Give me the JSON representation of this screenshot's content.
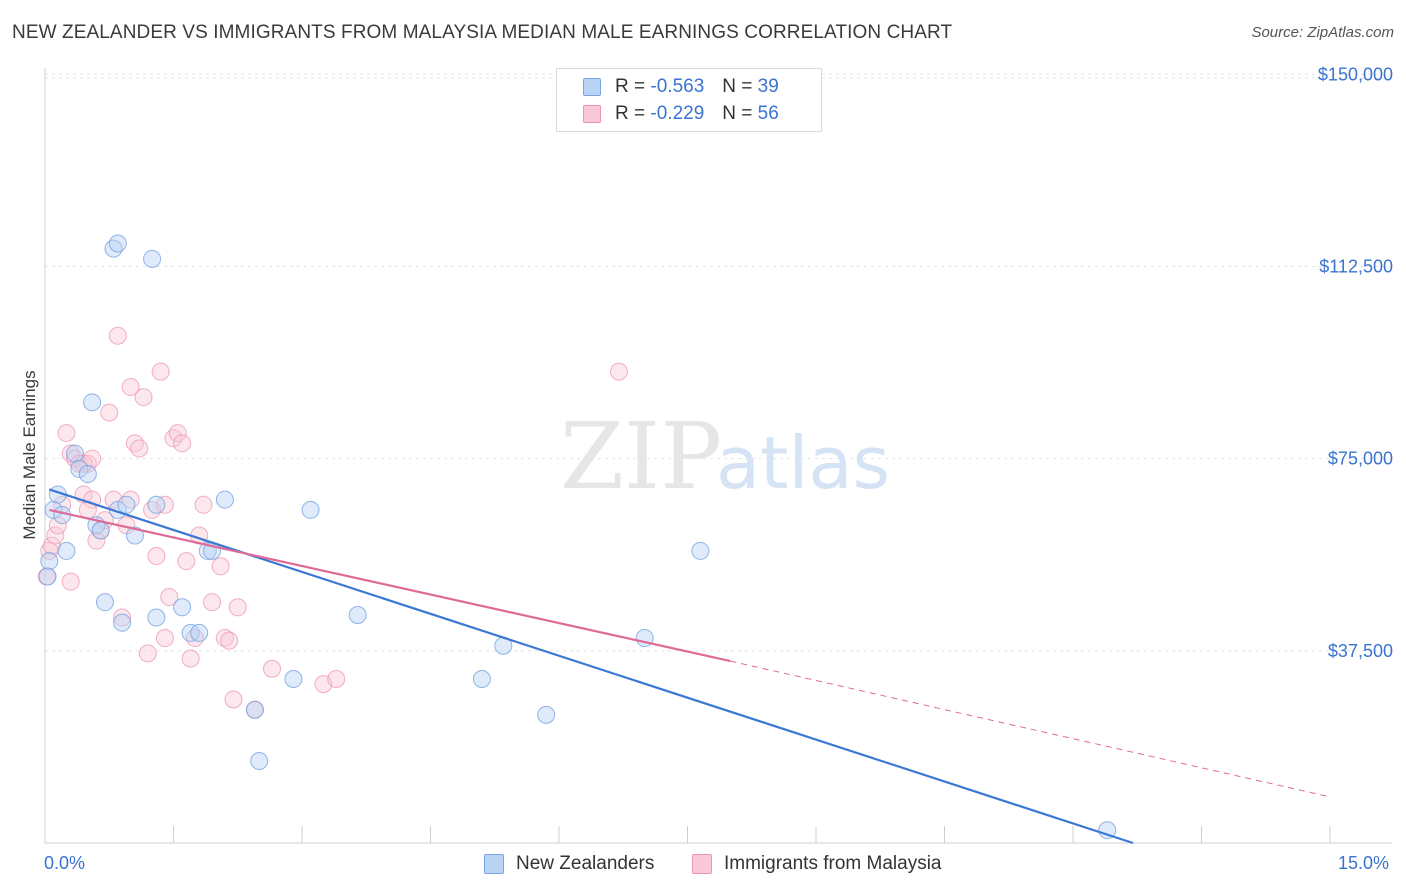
{
  "header": {
    "title": "NEW ZEALANDER VS IMMIGRANTS FROM MALAYSIA MEDIAN MALE EARNINGS CORRELATION CHART",
    "source": "Source: ZipAtlas.com"
  },
  "watermark": {
    "zip": "ZIP",
    "atlas": "atlas"
  },
  "legend_top": {
    "r_label": "R =",
    "n_label": "N =",
    "series": [
      {
        "r": "-0.563",
        "n": "39"
      },
      {
        "r": "-0.229",
        "n": "56"
      }
    ]
  },
  "colors": {
    "blue": "#3a78d4",
    "blue_fill": "#b9d3f5",
    "pink": "#e06a96",
    "pink_fill": "#f9c9d8",
    "tick_text": "#3a74d0",
    "grid": "#e4e4e4"
  },
  "chart_data": {
    "type": "scatter",
    "title": "NEW ZEALANDER VS IMMIGRANTS FROM MALAYSIA MEDIAN MALE EARNINGS CORRELATION CHART",
    "xlabel": "",
    "ylabel": "Median Male Earnings",
    "xlim": [
      0,
      15
    ],
    "ylim": [
      0,
      153000
    ],
    "x_tick_labels": [
      "0.0%",
      "15.0%"
    ],
    "y_ticks": [
      37500,
      75000,
      112500,
      150000
    ],
    "y_tick_labels": [
      "$37,500",
      "$75,000",
      "$112,500",
      "$150,000"
    ],
    "series": [
      {
        "name": "New Zealanders",
        "color": "#3a78d4",
        "points": [
          [
            0.05,
            55000
          ],
          [
            0.1,
            65000
          ],
          [
            0.15,
            68000
          ],
          [
            0.2,
            64000
          ],
          [
            0.25,
            57000
          ],
          [
            0.35,
            76000
          ],
          [
            0.4,
            73000
          ],
          [
            0.5,
            72000
          ],
          [
            0.55,
            86000
          ],
          [
            0.6,
            62000
          ],
          [
            0.65,
            61000
          ],
          [
            0.8,
            116000
          ],
          [
            0.7,
            47000
          ],
          [
            0.85,
            65000
          ],
          [
            0.9,
            43000
          ],
          [
            0.95,
            66000
          ],
          [
            1.05,
            60000
          ],
          [
            1.25,
            114000
          ],
          [
            1.3,
            66000
          ],
          [
            1.3,
            44000
          ],
          [
            0.85,
            117000
          ],
          [
            1.6,
            46000
          ],
          [
            1.7,
            41000
          ],
          [
            1.8,
            41000
          ],
          [
            1.9,
            57000
          ],
          [
            1.95,
            57000
          ],
          [
            2.1,
            67000
          ],
          [
            2.45,
            26000
          ],
          [
            2.5,
            16000
          ],
          [
            2.9,
            32000
          ],
          [
            3.1,
            65000
          ],
          [
            3.65,
            44500
          ],
          [
            5.1,
            32000
          ],
          [
            5.35,
            38500
          ],
          [
            5.85,
            25000
          ],
          [
            7.0,
            40000
          ],
          [
            7.65,
            57000
          ],
          [
            12.4,
            2500
          ],
          [
            0.03,
            52000
          ]
        ],
        "trend": {
          "x0": 0.05,
          "y0": 69000,
          "x1": 12.7,
          "y1": 0
        }
      },
      {
        "name": "Immigrants from Malaysia",
        "color": "#e06a96",
        "points": [
          [
            0.02,
            52000
          ],
          [
            0.05,
            57000
          ],
          [
            0.08,
            58000
          ],
          [
            0.12,
            60000
          ],
          [
            0.15,
            62000
          ],
          [
            0.2,
            66000
          ],
          [
            0.25,
            80000
          ],
          [
            0.3,
            76000
          ],
          [
            0.35,
            75000
          ],
          [
            0.4,
            74000
          ],
          [
            0.45,
            68000
          ],
          [
            0.5,
            74000
          ],
          [
            0.55,
            67000
          ],
          [
            0.6,
            59000
          ],
          [
            0.65,
            61000
          ],
          [
            0.7,
            63000
          ],
          [
            0.75,
            84000
          ],
          [
            0.8,
            67000
          ],
          [
            0.85,
            99000
          ],
          [
            0.9,
            44000
          ],
          [
            0.95,
            62000
          ],
          [
            1.0,
            89000
          ],
          [
            1.05,
            78000
          ],
          [
            1.1,
            77000
          ],
          [
            1.15,
            87000
          ],
          [
            1.2,
            37000
          ],
          [
            1.25,
            65000
          ],
          [
            1.3,
            56000
          ],
          [
            1.35,
            92000
          ],
          [
            1.4,
            40000
          ],
          [
            1.45,
            48000
          ],
          [
            1.5,
            79000
          ],
          [
            1.55,
            80000
          ],
          [
            1.6,
            78000
          ],
          [
            1.65,
            55000
          ],
          [
            1.7,
            36000
          ],
          [
            1.75,
            40000
          ],
          [
            1.8,
            60000
          ],
          [
            1.85,
            66000
          ],
          [
            1.95,
            47000
          ],
          [
            2.05,
            54000
          ],
          [
            2.1,
            40000
          ],
          [
            2.15,
            39500
          ],
          [
            2.2,
            28000
          ],
          [
            2.25,
            46000
          ],
          [
            2.45,
            26000
          ],
          [
            2.65,
            34000
          ],
          [
            3.25,
            31000
          ],
          [
            3.4,
            32000
          ],
          [
            6.7,
            92000
          ],
          [
            0.3,
            51000
          ],
          [
            0.5,
            65000
          ],
          [
            1.0,
            67000
          ],
          [
            0.45,
            74000
          ],
          [
            0.55,
            75000
          ],
          [
            1.4,
            66000
          ]
        ],
        "trend": {
          "x0": 0.05,
          "y0": 65000,
          "x1": 8.0,
          "y1": 35500
        },
        "trend_dashed": {
          "x0": 8.0,
          "y0": 35500,
          "x1": 15.0,
          "y1": 9000
        }
      }
    ]
  },
  "legend_bottom": {
    "items": [
      {
        "label": "New Zealanders"
      },
      {
        "label": "Immigrants from Malaysia"
      }
    ]
  }
}
